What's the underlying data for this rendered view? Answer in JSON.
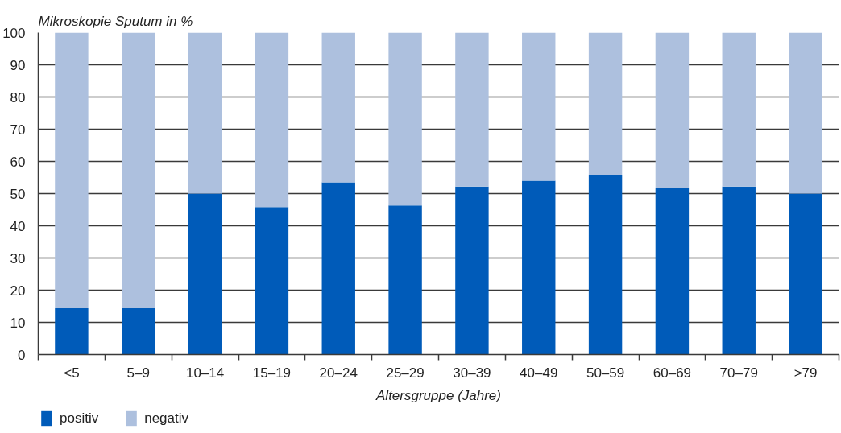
{
  "chart_data": {
    "type": "bar",
    "stacked": true,
    "ylabel": "Mikroskopie Sputum in %",
    "xlabel": "Altersgruppe (Jahre)",
    "categories": [
      "<5",
      "5–9",
      "10–14",
      "15–19",
      "20–24",
      "25–29",
      "30–39",
      "40–49",
      "50–59",
      "60–69",
      "70–79",
      ">79"
    ],
    "series": [
      {
        "name": "positiv",
        "color": "#005bb9",
        "values": [
          14.4,
          14.4,
          50.0,
          45.8,
          53.5,
          46.3,
          52.2,
          54.0,
          55.9,
          51.7,
          52.2,
          50.0
        ]
      },
      {
        "name": "negativ",
        "color": "#adc0de",
        "values": [
          85.6,
          85.6,
          50.0,
          54.2,
          46.5,
          53.7,
          47.8,
          46.0,
          44.1,
          48.3,
          47.8,
          50.0
        ]
      }
    ],
    "ylim": [
      0,
      100
    ],
    "yticks": [
      0,
      10,
      20,
      30,
      40,
      50,
      60,
      70,
      80,
      90,
      100
    ],
    "grid": "y",
    "legend": "bottom left"
  }
}
